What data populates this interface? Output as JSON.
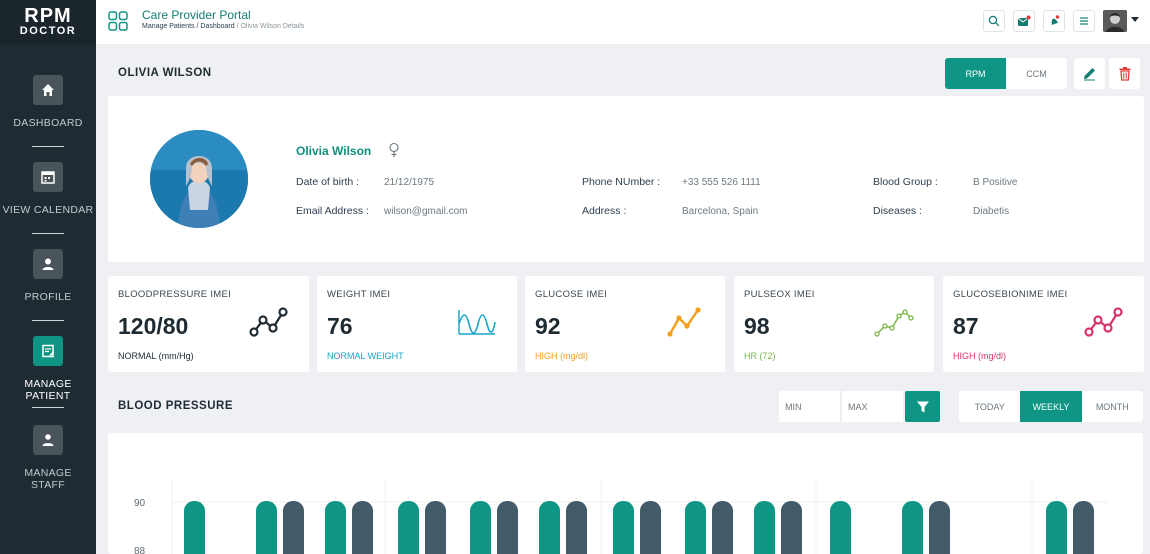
{
  "brand": {
    "line1": "RPM",
    "line2": "DOCTOR"
  },
  "sidebar": {
    "items": [
      {
        "label": "DASHBOARD",
        "icon": "home-icon"
      },
      {
        "label": "VIEW CALENDAR",
        "icon": "calendar-icon"
      },
      {
        "label": "PROFILE",
        "icon": "user-icon"
      },
      {
        "label": "MANAGE PATIENT",
        "icon": "edit-note-icon",
        "active": true
      },
      {
        "label": "MANAGE STAFF",
        "icon": "staff-icon"
      }
    ]
  },
  "header": {
    "title": "Care Provider Portal",
    "breadcrumb": [
      "Manage Patients",
      "Dashboard",
      "Olivia Wilson Details"
    ]
  },
  "patient": {
    "heading": "OLIVIA WILSON",
    "name": "Olivia Wilson",
    "fields": {
      "dob_label": "Date of birth",
      "dob": "21/12/1975",
      "email_label": "Email Address",
      "email": "wilson@gmail.com",
      "phone_label": "Phone NUmber",
      "phone": "+33 555 526 1111",
      "address_label": "Address",
      "address": "Barcelona, Spain",
      "blood_label": "Blood Group",
      "blood": "B Positive",
      "disease_label": "Diseases",
      "disease": "Diabetis"
    }
  },
  "mode_toggle": {
    "options": [
      "RPM",
      "CCM"
    ],
    "selected": "RPM"
  },
  "stats": [
    {
      "title": "BLOODPRESSURE IMEI",
      "value": "120/80",
      "status": "NORMAL (mm/Hg)",
      "color": "#1f2b33"
    },
    {
      "title": "WEIGHT IMEI",
      "value": "76",
      "status": "NORMAL WEIGHT",
      "color": "#1aa3c8"
    },
    {
      "title": "GLUCOSE IMEI",
      "value": "92",
      "status": "HIGH (mg/dl)",
      "color": "#f0a01e"
    },
    {
      "title": "PULSEOX IMEI",
      "value": "98",
      "status": "HR (72)",
      "color": "#7ab648"
    },
    {
      "title": "GLUCOSEBIONIME IMEI",
      "value": "87",
      "status": "HIGH (mg/dl)",
      "color": "#d6336c"
    }
  ],
  "blood_pressure": {
    "title": "BLOOD PRESSURE",
    "min_placeholder": "MIN",
    "max_placeholder": "MAX",
    "periods": [
      "TODAY",
      "WEEKLY",
      "MONTH"
    ],
    "selected_period": "WEEKLY"
  },
  "chart_data": {
    "type": "bar",
    "y_ticks": [
      "90",
      "88"
    ],
    "series": [
      {
        "values": [
          90,
          90,
          90,
          90,
          90,
          90,
          90,
          90,
          90,
          90,
          90,
          90
        ],
        "color": "#0f9583"
      },
      {
        "values": [
          null,
          90,
          90,
          90,
          90,
          90,
          90,
          90,
          90,
          null,
          90,
          90
        ],
        "color": "#435a68"
      }
    ]
  }
}
